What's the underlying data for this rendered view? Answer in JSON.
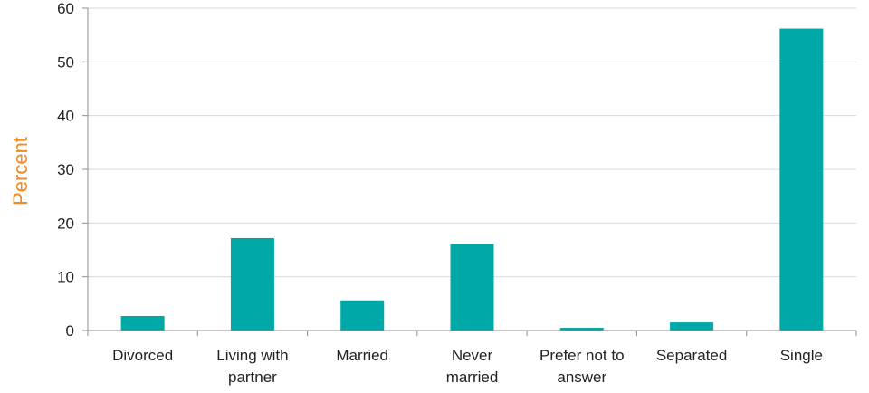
{
  "chart_data": {
    "type": "bar",
    "title": "",
    "xlabel": "",
    "ylabel": "Percent",
    "ylim": [
      0,
      60
    ],
    "yticks": [
      0,
      10,
      20,
      30,
      40,
      50,
      60
    ],
    "grid": true,
    "categories": [
      [
        "Divorced"
      ],
      [
        "Living with",
        "partner"
      ],
      [
        "Married"
      ],
      [
        "Never",
        "married"
      ],
      [
        "Prefer not to",
        "answer"
      ],
      [
        "Separated"
      ],
      [
        "Single"
      ]
    ],
    "values": [
      2.7,
      17.2,
      5.6,
      16.1,
      0.5,
      1.5,
      56.2
    ]
  },
  "colors": {
    "bar": "#00a9a7",
    "ylabel": "#f08a24",
    "grid": "#d9d9d9",
    "axis": "#8c8c8c"
  }
}
